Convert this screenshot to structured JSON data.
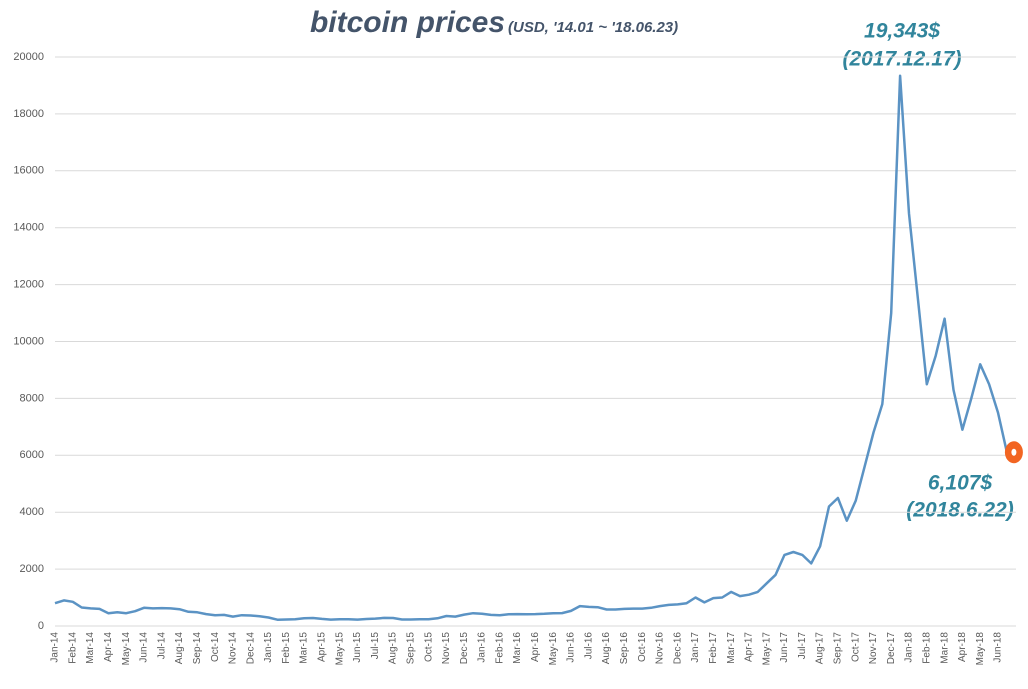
{
  "chart_data": {
    "type": "line",
    "title": "bitcoin prices",
    "subtitle": "(USD, '14.01 ~ '18.06.23)",
    "annotations": [
      "19,343$",
      "(2017.12.17)",
      "6,107$",
      "(2018.6.22)"
    ],
    "categories": [
      "Jan-14",
      null,
      "Feb-14",
      null,
      "Mar-14",
      null,
      "Apr-14",
      null,
      "May-14",
      null,
      "Jun-14",
      null,
      "Jul-14",
      null,
      "Aug-14",
      null,
      "Sep-14",
      null,
      "Oct-14",
      null,
      "Nov-14",
      null,
      "Dec-14",
      null,
      "Jan-15",
      null,
      "Feb-15",
      null,
      "Mar-15",
      null,
      "Apr-15",
      null,
      "May-15",
      null,
      "Jun-15",
      null,
      "Jul-15",
      null,
      "Aug-15",
      null,
      "Sep-15",
      null,
      "Oct-15",
      null,
      "Nov-15",
      null,
      "Dec-15",
      null,
      "Jan-16",
      null,
      "Feb-16",
      null,
      "Mar-16",
      null,
      "Apr-16",
      null,
      "May-16",
      null,
      "Jun-16",
      null,
      "Jul-16",
      null,
      "Aug-16",
      null,
      "Sep-16",
      null,
      "Oct-16",
      null,
      "Nov-16",
      null,
      "Dec-16",
      null,
      "Jan-17",
      null,
      "Feb-17",
      null,
      "Mar-17",
      null,
      "Apr-17",
      null,
      "May-17",
      null,
      "Jun-17",
      null,
      "Jul-17",
      null,
      "Aug-17",
      null,
      "Sep-17",
      null,
      "Oct-17",
      null,
      "Nov-17",
      null,
      "Dec-17",
      null,
      "Jan-18",
      null,
      "Feb-18",
      null,
      "Mar-18",
      null,
      "Apr-18",
      null,
      "May-18",
      null,
      "Jun-18",
      null
    ],
    "series": [
      {
        "name": "bitcoin price",
        "color": "#5b93c4",
        "values": [
          800,
          900,
          850,
          650,
          620,
          600,
          450,
          480,
          450,
          520,
          640,
          620,
          630,
          620,
          590,
          500,
          480,
          420,
          380,
          390,
          330,
          380,
          370,
          340,
          300,
          220,
          230,
          240,
          270,
          280,
          250,
          225,
          240,
          240,
          225,
          245,
          260,
          285,
          280,
          230,
          230,
          235,
          240,
          270,
          350,
          330,
          400,
          450,
          430,
          390,
          380,
          410,
          420,
          415,
          420,
          430,
          450,
          455,
          530,
          700,
          670,
          660,
          580,
          580,
          600,
          610,
          610,
          640,
          700,
          740,
          760,
          800,
          1000,
          830,
          980,
          1000,
          1200,
          1050,
          1100,
          1200,
          1500,
          1800,
          2500,
          2600,
          2500,
          2200,
          2800,
          4200,
          4500,
          3700,
          4400,
          5600,
          6800,
          7800,
          11000,
          19343,
          14500,
          11500,
          8500,
          9500,
          10800,
          8300,
          6900,
          8000,
          9200,
          8500,
          7500,
          6107
        ]
      }
    ],
    "ylim": [
      0,
      20000
    ],
    "yticks": [
      0,
      2000,
      4000,
      6000,
      8000,
      10000,
      12000,
      14000,
      16000,
      18000,
      20000
    ],
    "grid": true,
    "marker_color": "#f26522"
  }
}
